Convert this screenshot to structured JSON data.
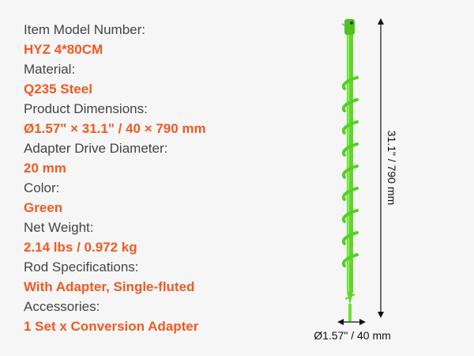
{
  "specs": [
    {
      "label": "Item Model Number:",
      "value": "HYZ 4*80CM"
    },
    {
      "label": "Material:",
      "value": "Q235 Steel"
    },
    {
      "label": "Product Dimensions:",
      "value": "Ø1.57\" × 31.1\" / 40 × 790 mm"
    },
    {
      "label": "Adapter Drive Diameter:",
      "value": "20 mm"
    },
    {
      "label": "Color:",
      "value": "Green"
    },
    {
      "label": "Net Weight:",
      "value": "2.14 lbs / 0.972 kg"
    },
    {
      "label": "Rod Specifications:",
      "value": "With Adapter, Single-fluted"
    },
    {
      "label": "Accessories:",
      "value": "1 Set x Conversion Adapter"
    }
  ],
  "dimensions": {
    "length": "31.1\" / 790 mm",
    "diameter": "Ø1.57\" / 40 mm"
  },
  "colors": {
    "accent": "#f05a22",
    "product": "#5fd62a"
  }
}
